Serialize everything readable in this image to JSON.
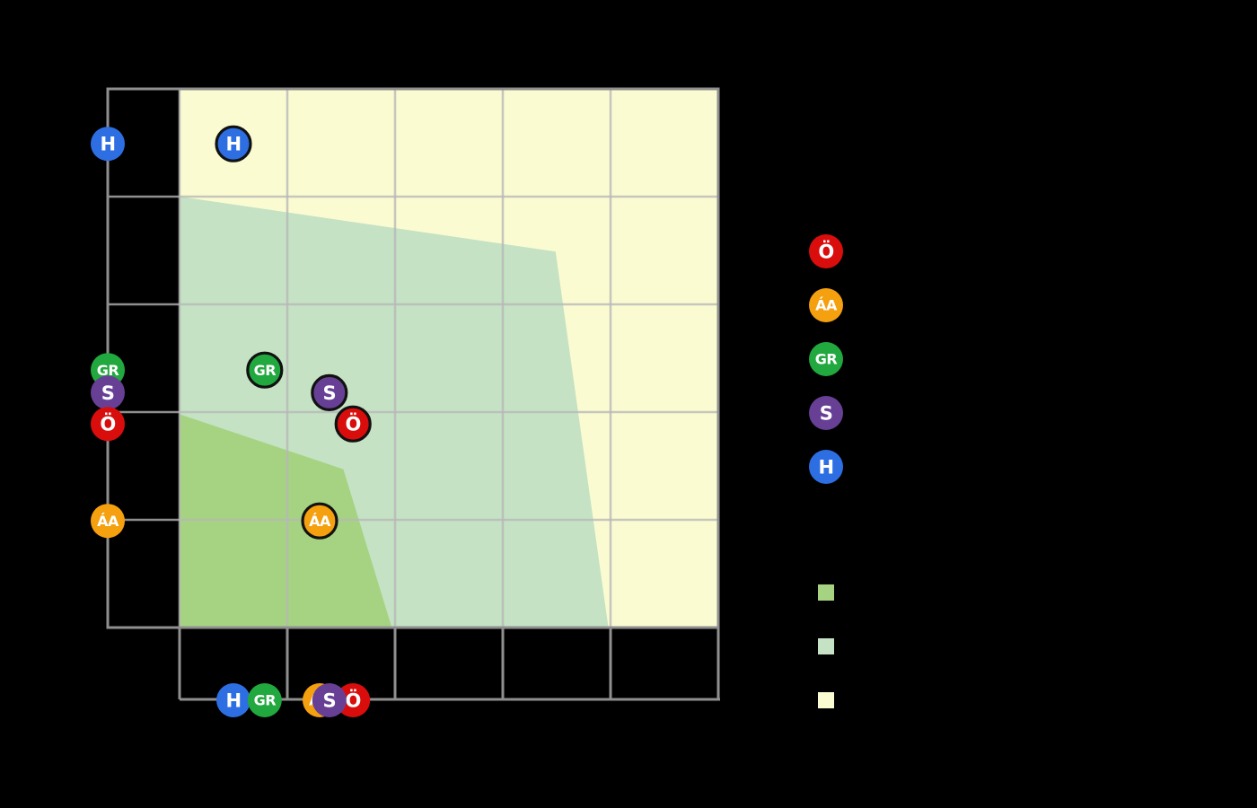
{
  "canvas": {
    "background": "#000000"
  },
  "colors": {
    "frame": "#8f8f8f",
    "gridline": "#b7b7b7",
    "marker_outline": "#111111",
    "marker_letter": "#ffffff"
  },
  "chart_data": {
    "type": "scatter",
    "description": "Scatter chart with shaded coalition regions; each lettered party marker is also projected onto the left axis and a bottom strip. No axis tick labels, titles or legend captions are visibly rendered (black background).",
    "axes": {
      "x": {
        "range": [
          0.33,
          6
        ],
        "gridline_values": [
          1,
          2,
          3,
          4,
          5,
          6
        ],
        "tick_labels_visible": false
      },
      "y": {
        "range": [
          0,
          5
        ],
        "gridline_values": [
          0,
          1,
          2,
          3,
          4,
          5
        ],
        "tick_labels_visible": false
      },
      "grid": true
    },
    "points": [
      {
        "id": "H",
        "label": "H",
        "x": 1.5,
        "y": 4.49,
        "color": "#2d6fe3"
      },
      {
        "id": "GR",
        "label": "GR",
        "x": 1.79,
        "y": 2.39,
        "color": "#21a83e"
      },
      {
        "id": "S",
        "label": "S",
        "x": 2.39,
        "y": 2.18,
        "color": "#674096"
      },
      {
        "id": "O",
        "label": "Ö",
        "x": 2.61,
        "y": 1.89,
        "color": "#da0d0d"
      },
      {
        "id": "AA",
        "label": "ÁA",
        "x": 2.3,
        "y": 0.99,
        "color": "#f4a00f"
      }
    ],
    "plot_draw_order": [
      "H",
      "GR",
      "S",
      "O",
      "AA"
    ],
    "marginals": {
      "left_axis_projection": true,
      "bottom_strip_projection": true,
      "left_draw_order": [
        "H",
        "GR",
        "S",
        "O",
        "AA"
      ],
      "bottom_draw_order": [
        "H",
        "GR",
        "AA",
        "O",
        "S"
      ]
    },
    "regions": [
      {
        "name": "yellow",
        "color": "#fbfbd2",
        "polygon": [
          [
            1,
            0
          ],
          [
            1,
            5
          ],
          [
            6,
            5
          ],
          [
            6,
            0
          ]
        ]
      },
      {
        "name": "light-green",
        "color": "#c5e2c4",
        "polygon": [
          [
            1,
            4.0
          ],
          [
            4.49,
            3.49
          ],
          [
            4.98,
            0
          ],
          [
            1,
            0
          ]
        ]
      },
      {
        "name": "dark-green",
        "color": "#a6d382",
        "polygon": [
          [
            1,
            1.98
          ],
          [
            2.52,
            1.47
          ],
          [
            2.97,
            0
          ],
          [
            1,
            0
          ]
        ]
      }
    ],
    "legend": {
      "point_entries": [
        {
          "id": "O",
          "label": "Ö",
          "color": "#da0d0d"
        },
        {
          "id": "AA",
          "label": "ÁA",
          "color": "#f4a00f"
        },
        {
          "id": "GR",
          "label": "GR",
          "color": "#21a83e"
        },
        {
          "id": "S",
          "label": "S",
          "color": "#674096"
        },
        {
          "id": "H",
          "label": "H",
          "color": "#2d6fe3"
        }
      ],
      "region_entries": [
        {
          "name": "dark-green",
          "color": "#a6d382"
        },
        {
          "name": "light-green",
          "color": "#c5e2c4"
        },
        {
          "name": "yellow",
          "color": "#fbfbd2"
        }
      ],
      "captions_visible": false
    }
  }
}
